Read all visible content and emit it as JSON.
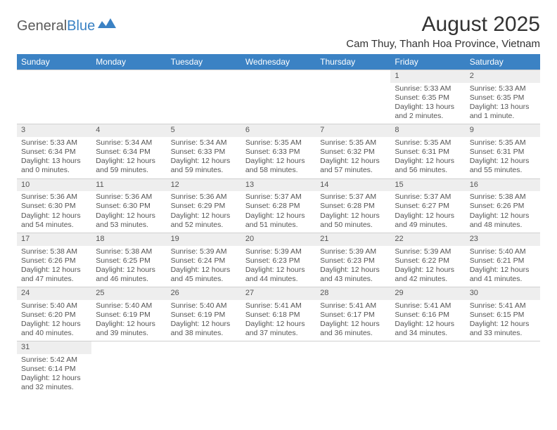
{
  "logo": {
    "part1": "General",
    "part2": "Blue",
    "shape_color": "#3b82c4",
    "text1_color": "#5a5a5a",
    "text2_color": "#3b82c4"
  },
  "title": "August 2025",
  "location": "Cam Thuy, Thanh Hoa Province, Vietnam",
  "header_bg": "#3b82c4",
  "header_fg": "#ffffff",
  "daynum_bg": "#eeeeee",
  "border_color": "#d0d0d0",
  "text_color": "#555555",
  "day_names": [
    "Sunday",
    "Monday",
    "Tuesday",
    "Wednesday",
    "Thursday",
    "Friday",
    "Saturday"
  ],
  "weeks": [
    [
      {
        "n": "",
        "sr": "",
        "ss": "",
        "dl": ""
      },
      {
        "n": "",
        "sr": "",
        "ss": "",
        "dl": ""
      },
      {
        "n": "",
        "sr": "",
        "ss": "",
        "dl": ""
      },
      {
        "n": "",
        "sr": "",
        "ss": "",
        "dl": ""
      },
      {
        "n": "",
        "sr": "",
        "ss": "",
        "dl": ""
      },
      {
        "n": "1",
        "sr": "Sunrise: 5:33 AM",
        "ss": "Sunset: 6:35 PM",
        "dl": "Daylight: 13 hours and 2 minutes."
      },
      {
        "n": "2",
        "sr": "Sunrise: 5:33 AM",
        "ss": "Sunset: 6:35 PM",
        "dl": "Daylight: 13 hours and 1 minute."
      }
    ],
    [
      {
        "n": "3",
        "sr": "Sunrise: 5:33 AM",
        "ss": "Sunset: 6:34 PM",
        "dl": "Daylight: 13 hours and 0 minutes."
      },
      {
        "n": "4",
        "sr": "Sunrise: 5:34 AM",
        "ss": "Sunset: 6:34 PM",
        "dl": "Daylight: 12 hours and 59 minutes."
      },
      {
        "n": "5",
        "sr": "Sunrise: 5:34 AM",
        "ss": "Sunset: 6:33 PM",
        "dl": "Daylight: 12 hours and 59 minutes."
      },
      {
        "n": "6",
        "sr": "Sunrise: 5:35 AM",
        "ss": "Sunset: 6:33 PM",
        "dl": "Daylight: 12 hours and 58 minutes."
      },
      {
        "n": "7",
        "sr": "Sunrise: 5:35 AM",
        "ss": "Sunset: 6:32 PM",
        "dl": "Daylight: 12 hours and 57 minutes."
      },
      {
        "n": "8",
        "sr": "Sunrise: 5:35 AM",
        "ss": "Sunset: 6:31 PM",
        "dl": "Daylight: 12 hours and 56 minutes."
      },
      {
        "n": "9",
        "sr": "Sunrise: 5:35 AM",
        "ss": "Sunset: 6:31 PM",
        "dl": "Daylight: 12 hours and 55 minutes."
      }
    ],
    [
      {
        "n": "10",
        "sr": "Sunrise: 5:36 AM",
        "ss": "Sunset: 6:30 PM",
        "dl": "Daylight: 12 hours and 54 minutes."
      },
      {
        "n": "11",
        "sr": "Sunrise: 5:36 AM",
        "ss": "Sunset: 6:30 PM",
        "dl": "Daylight: 12 hours and 53 minutes."
      },
      {
        "n": "12",
        "sr": "Sunrise: 5:36 AM",
        "ss": "Sunset: 6:29 PM",
        "dl": "Daylight: 12 hours and 52 minutes."
      },
      {
        "n": "13",
        "sr": "Sunrise: 5:37 AM",
        "ss": "Sunset: 6:28 PM",
        "dl": "Daylight: 12 hours and 51 minutes."
      },
      {
        "n": "14",
        "sr": "Sunrise: 5:37 AM",
        "ss": "Sunset: 6:28 PM",
        "dl": "Daylight: 12 hours and 50 minutes."
      },
      {
        "n": "15",
        "sr": "Sunrise: 5:37 AM",
        "ss": "Sunset: 6:27 PM",
        "dl": "Daylight: 12 hours and 49 minutes."
      },
      {
        "n": "16",
        "sr": "Sunrise: 5:38 AM",
        "ss": "Sunset: 6:26 PM",
        "dl": "Daylight: 12 hours and 48 minutes."
      }
    ],
    [
      {
        "n": "17",
        "sr": "Sunrise: 5:38 AM",
        "ss": "Sunset: 6:26 PM",
        "dl": "Daylight: 12 hours and 47 minutes."
      },
      {
        "n": "18",
        "sr": "Sunrise: 5:38 AM",
        "ss": "Sunset: 6:25 PM",
        "dl": "Daylight: 12 hours and 46 minutes."
      },
      {
        "n": "19",
        "sr": "Sunrise: 5:39 AM",
        "ss": "Sunset: 6:24 PM",
        "dl": "Daylight: 12 hours and 45 minutes."
      },
      {
        "n": "20",
        "sr": "Sunrise: 5:39 AM",
        "ss": "Sunset: 6:23 PM",
        "dl": "Daylight: 12 hours and 44 minutes."
      },
      {
        "n": "21",
        "sr": "Sunrise: 5:39 AM",
        "ss": "Sunset: 6:23 PM",
        "dl": "Daylight: 12 hours and 43 minutes."
      },
      {
        "n": "22",
        "sr": "Sunrise: 5:39 AM",
        "ss": "Sunset: 6:22 PM",
        "dl": "Daylight: 12 hours and 42 minutes."
      },
      {
        "n": "23",
        "sr": "Sunrise: 5:40 AM",
        "ss": "Sunset: 6:21 PM",
        "dl": "Daylight: 12 hours and 41 minutes."
      }
    ],
    [
      {
        "n": "24",
        "sr": "Sunrise: 5:40 AM",
        "ss": "Sunset: 6:20 PM",
        "dl": "Daylight: 12 hours and 40 minutes."
      },
      {
        "n": "25",
        "sr": "Sunrise: 5:40 AM",
        "ss": "Sunset: 6:19 PM",
        "dl": "Daylight: 12 hours and 39 minutes."
      },
      {
        "n": "26",
        "sr": "Sunrise: 5:40 AM",
        "ss": "Sunset: 6:19 PM",
        "dl": "Daylight: 12 hours and 38 minutes."
      },
      {
        "n": "27",
        "sr": "Sunrise: 5:41 AM",
        "ss": "Sunset: 6:18 PM",
        "dl": "Daylight: 12 hours and 37 minutes."
      },
      {
        "n": "28",
        "sr": "Sunrise: 5:41 AM",
        "ss": "Sunset: 6:17 PM",
        "dl": "Daylight: 12 hours and 36 minutes."
      },
      {
        "n": "29",
        "sr": "Sunrise: 5:41 AM",
        "ss": "Sunset: 6:16 PM",
        "dl": "Daylight: 12 hours and 34 minutes."
      },
      {
        "n": "30",
        "sr": "Sunrise: 5:41 AM",
        "ss": "Sunset: 6:15 PM",
        "dl": "Daylight: 12 hours and 33 minutes."
      }
    ],
    [
      {
        "n": "31",
        "sr": "Sunrise: 5:42 AM",
        "ss": "Sunset: 6:14 PM",
        "dl": "Daylight: 12 hours and 32 minutes."
      },
      {
        "n": "",
        "sr": "",
        "ss": "",
        "dl": ""
      },
      {
        "n": "",
        "sr": "",
        "ss": "",
        "dl": ""
      },
      {
        "n": "",
        "sr": "",
        "ss": "",
        "dl": ""
      },
      {
        "n": "",
        "sr": "",
        "ss": "",
        "dl": ""
      },
      {
        "n": "",
        "sr": "",
        "ss": "",
        "dl": ""
      },
      {
        "n": "",
        "sr": "",
        "ss": "",
        "dl": ""
      }
    ]
  ]
}
